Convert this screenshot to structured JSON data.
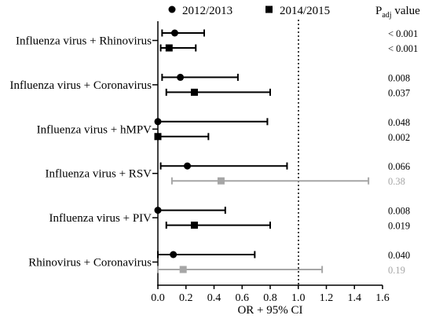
{
  "chart_data": {
    "type": "forest",
    "xlabel": "OR + 95% CI",
    "xlim": [
      0,
      1.6
    ],
    "xticks": [
      "0.0",
      "0.2",
      "0.4",
      "0.6",
      "0.8",
      "1.0",
      "1.2",
      "1.4",
      "1.6"
    ],
    "reference_line": 1.0,
    "p_column_title": {
      "main": "P",
      "sub": "adj",
      "rest": " value"
    },
    "legend": [
      {
        "name": "2012/2013",
        "marker": "circle"
      },
      {
        "name": "2014/2015",
        "marker": "square"
      }
    ],
    "categories": [
      {
        "label": "Influenza virus + Rhinovirus",
        "rows": [
          {
            "season": "2012/2013",
            "or": 0.12,
            "lo": 0.03,
            "hi": 0.33,
            "p": "< 0.001",
            "significant": true
          },
          {
            "season": "2014/2015",
            "or": 0.08,
            "lo": 0.02,
            "hi": 0.27,
            "p": "< 0.001",
            "significant": true
          }
        ]
      },
      {
        "label": "Influenza virus + Coronavirus",
        "rows": [
          {
            "season": "2012/2013",
            "or": 0.16,
            "lo": 0.03,
            "hi": 0.57,
            "p": "0.008",
            "significant": true
          },
          {
            "season": "2014/2015",
            "or": 0.26,
            "lo": 0.06,
            "hi": 0.8,
            "p": "0.037",
            "significant": true
          }
        ]
      },
      {
        "label": "Influenza virus + hMPV",
        "rows": [
          {
            "season": "2012/2013",
            "or": 0.0,
            "lo": 0.0,
            "hi": 0.78,
            "p": "0.048",
            "significant": true
          },
          {
            "season": "2014/2015",
            "or": 0.0,
            "lo": 0.0,
            "hi": 0.36,
            "p": "0.002",
            "significant": true
          }
        ]
      },
      {
        "label": "Influenza virus + RSV",
        "rows": [
          {
            "season": "2012/2013",
            "or": 0.21,
            "lo": 0.02,
            "hi": 0.92,
            "p": "0.066",
            "significant": true
          },
          {
            "season": "2014/2015",
            "or": 0.45,
            "lo": 0.1,
            "hi": 1.5,
            "p": "0.38",
            "significant": false
          }
        ]
      },
      {
        "label": "Influenza virus + PIV",
        "rows": [
          {
            "season": "2012/2013",
            "or": 0.0,
            "lo": 0.0,
            "hi": 0.48,
            "p": "0.008",
            "significant": true
          },
          {
            "season": "2014/2015",
            "or": 0.26,
            "lo": 0.06,
            "hi": 0.8,
            "p": "0.019",
            "significant": true
          }
        ]
      },
      {
        "label": "Rhinovirus + Coronavirus",
        "rows": [
          {
            "season": "2012/2013",
            "or": 0.11,
            "lo": 0.0,
            "hi": 0.69,
            "p": "0.040",
            "significant": true
          },
          {
            "season": "2014/2015",
            "or": 0.18,
            "lo": 0.0,
            "hi": 1.17,
            "p": "0.19",
            "significant": false
          }
        ]
      }
    ]
  },
  "colors": {
    "significant": "#000000",
    "not_significant": "#a6a6a6"
  }
}
